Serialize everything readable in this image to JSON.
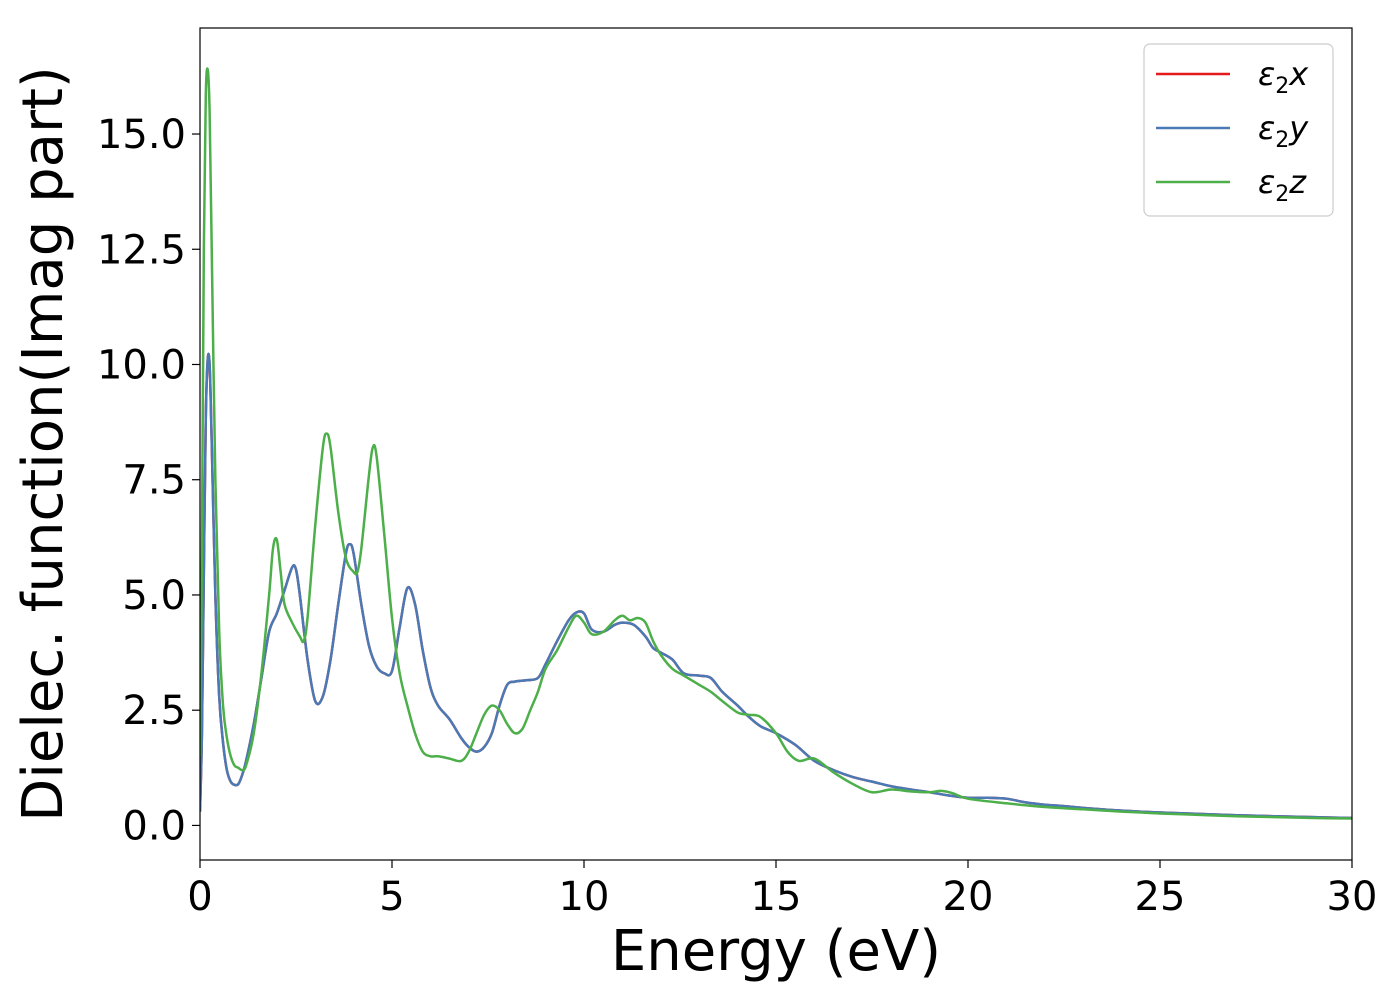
{
  "chart_data": {
    "type": "line",
    "title": "",
    "xlabel": "Energy (eV)",
    "ylabel": "Dielec. function(Imag part)",
    "xlim": [
      0,
      30
    ],
    "ylim": [
      -0.75,
      17.3
    ],
    "xticks": [
      0,
      5,
      10,
      15,
      20,
      25,
      30
    ],
    "xtick_labels": [
      "0",
      "5",
      "10",
      "15",
      "20",
      "25",
      "30"
    ],
    "yticks": [
      0,
      2.5,
      5,
      7.5,
      10,
      12.5,
      15
    ],
    "ytick_labels": [
      "0.0",
      "2.5",
      "5.0",
      "7.5",
      "10.0",
      "12.5",
      "15.0"
    ],
    "grid": false,
    "legend_position": "top-right",
    "series": [
      {
        "name": "ε2x",
        "legend_main": "ε",
        "legend_sub": "2",
        "legend_var": "x",
        "color": "#e41a1c",
        "x": [
          0,
          0.05,
          0.1,
          0.15,
          0.2,
          0.25,
          0.3,
          0.4,
          0.5,
          0.6,
          0.7,
          0.8,
          0.9,
          1.0,
          1.1,
          1.2,
          1.4,
          1.6,
          1.8,
          2.0,
          2.2,
          2.4,
          2.5,
          2.6,
          2.8,
          3.0,
          3.2,
          3.4,
          3.6,
          3.8,
          3.9,
          4.0,
          4.2,
          4.4,
          4.6,
          4.8,
          5.0,
          5.2,
          5.4,
          5.6,
          5.8,
          6.0,
          6.2,
          6.5,
          6.8,
          7.0,
          7.2,
          7.4,
          7.6,
          7.8,
          8.0,
          8.2,
          8.5,
          8.8,
          9.0,
          9.3,
          9.6,
          9.8,
          10.0,
          10.2,
          10.5,
          10.8,
          11.0,
          11.3,
          11.6,
          11.8,
          12.0,
          12.3,
          12.6,
          13.0,
          13.3,
          13.6,
          14.0,
          14.3,
          14.6,
          15.0,
          15.5,
          16.0,
          16.5,
          17.0,
          17.5,
          18.0,
          18.5,
          19.0,
          19.5,
          20.0,
          20.5,
          21.0,
          21.5,
          22.0,
          22.5,
          23.0,
          24.0,
          25.0,
          26.0,
          27.0,
          28.0,
          29.0,
          30.0
        ],
        "y": [
          0.3,
          2.0,
          5.5,
          8.8,
          10.1,
          10.0,
          8.5,
          5.0,
          2.8,
          1.8,
          1.2,
          0.95,
          0.88,
          0.9,
          1.1,
          1.4,
          2.2,
          3.2,
          4.2,
          4.6,
          5.1,
          5.6,
          5.55,
          5.0,
          3.6,
          2.7,
          2.8,
          3.6,
          4.8,
          5.9,
          6.1,
          5.9,
          4.8,
          3.9,
          3.45,
          3.3,
          3.35,
          4.3,
          5.15,
          4.8,
          3.8,
          3.0,
          2.6,
          2.3,
          1.9,
          1.7,
          1.6,
          1.7,
          2.0,
          2.6,
          3.05,
          3.12,
          3.15,
          3.2,
          3.5,
          4.0,
          4.45,
          4.62,
          4.6,
          4.25,
          4.2,
          4.35,
          4.4,
          4.35,
          4.1,
          3.85,
          3.75,
          3.6,
          3.3,
          3.25,
          3.2,
          2.9,
          2.6,
          2.35,
          2.15,
          2.0,
          1.75,
          1.4,
          1.2,
          1.05,
          0.95,
          0.85,
          0.78,
          0.72,
          0.65,
          0.6,
          0.6,
          0.58,
          0.5,
          0.45,
          0.42,
          0.38,
          0.32,
          0.28,
          0.25,
          0.22,
          0.2,
          0.18,
          0.16
        ]
      },
      {
        "name": "ε2y",
        "legend_main": "ε",
        "legend_sub": "2",
        "legend_var": "y",
        "color": "#4a7ab5",
        "x": [
          0,
          0.05,
          0.1,
          0.15,
          0.2,
          0.25,
          0.3,
          0.4,
          0.5,
          0.6,
          0.7,
          0.8,
          0.9,
          1.0,
          1.1,
          1.2,
          1.4,
          1.6,
          1.8,
          2.0,
          2.2,
          2.4,
          2.5,
          2.6,
          2.8,
          3.0,
          3.2,
          3.4,
          3.6,
          3.8,
          3.9,
          4.0,
          4.2,
          4.4,
          4.6,
          4.8,
          5.0,
          5.2,
          5.4,
          5.6,
          5.8,
          6.0,
          6.2,
          6.5,
          6.8,
          7.0,
          7.2,
          7.4,
          7.6,
          7.8,
          8.0,
          8.2,
          8.5,
          8.8,
          9.0,
          9.3,
          9.6,
          9.8,
          10.0,
          10.2,
          10.5,
          10.8,
          11.0,
          11.3,
          11.6,
          11.8,
          12.0,
          12.3,
          12.6,
          13.0,
          13.3,
          13.6,
          14.0,
          14.3,
          14.6,
          15.0,
          15.5,
          16.0,
          16.5,
          17.0,
          17.5,
          18.0,
          18.5,
          19.0,
          19.5,
          20.0,
          20.5,
          21.0,
          21.5,
          22.0,
          22.5,
          23.0,
          24.0,
          25.0,
          26.0,
          27.0,
          28.0,
          29.0,
          30.0
        ],
        "y": [
          0.3,
          2.0,
          5.5,
          8.8,
          10.1,
          10.0,
          8.5,
          5.0,
          2.8,
          1.8,
          1.2,
          0.95,
          0.88,
          0.9,
          1.1,
          1.4,
          2.2,
          3.2,
          4.2,
          4.6,
          5.1,
          5.6,
          5.55,
          5.0,
          3.6,
          2.7,
          2.8,
          3.6,
          4.8,
          5.9,
          6.1,
          5.9,
          4.8,
          3.9,
          3.45,
          3.3,
          3.35,
          4.3,
          5.15,
          4.8,
          3.8,
          3.0,
          2.6,
          2.3,
          1.9,
          1.7,
          1.6,
          1.7,
          2.0,
          2.6,
          3.05,
          3.12,
          3.15,
          3.2,
          3.5,
          4.0,
          4.45,
          4.62,
          4.6,
          4.25,
          4.2,
          4.35,
          4.4,
          4.35,
          4.1,
          3.85,
          3.75,
          3.6,
          3.3,
          3.25,
          3.2,
          2.9,
          2.6,
          2.35,
          2.15,
          2.0,
          1.75,
          1.4,
          1.2,
          1.05,
          0.95,
          0.85,
          0.78,
          0.72,
          0.65,
          0.6,
          0.6,
          0.58,
          0.5,
          0.45,
          0.42,
          0.38,
          0.32,
          0.28,
          0.25,
          0.22,
          0.2,
          0.18,
          0.16
        ]
      },
      {
        "name": "ε2z",
        "legend_main": "ε",
        "legend_sub": "2",
        "legend_var": "z",
        "color": "#4daf4a",
        "x": [
          0,
          0.05,
          0.1,
          0.15,
          0.2,
          0.25,
          0.3,
          0.4,
          0.5,
          0.6,
          0.7,
          0.8,
          0.9,
          1.0,
          1.1,
          1.2,
          1.4,
          1.6,
          1.8,
          1.9,
          2.0,
          2.1,
          2.2,
          2.4,
          2.6,
          2.7,
          2.8,
          3.0,
          3.2,
          3.3,
          3.4,
          3.6,
          3.8,
          4.0,
          4.1,
          4.2,
          4.4,
          4.5,
          4.6,
          4.8,
          5.0,
          5.2,
          5.4,
          5.6,
          5.8,
          6.0,
          6.2,
          6.5,
          6.8,
          7.0,
          7.2,
          7.4,
          7.6,
          7.8,
          8.0,
          8.2,
          8.4,
          8.6,
          8.8,
          9.0,
          9.3,
          9.6,
          9.8,
          10.0,
          10.2,
          10.5,
          10.8,
          11.0,
          11.2,
          11.4,
          11.6,
          11.8,
          12.0,
          12.3,
          12.6,
          13.0,
          13.3,
          13.6,
          14.0,
          14.3,
          14.6,
          15.0,
          15.3,
          15.6,
          16.0,
          16.5,
          17.0,
          17.5,
          18.0,
          18.5,
          19.0,
          19.3,
          19.6,
          20.0,
          21.0,
          22.0,
          23.0,
          24.0,
          25.0,
          26.0,
          27.0,
          28.0,
          29.0,
          30.0
        ],
        "y": [
          1.5,
          6.0,
          12.5,
          15.8,
          16.4,
          15.5,
          12.8,
          7.5,
          4.2,
          2.6,
          1.9,
          1.5,
          1.3,
          1.25,
          1.2,
          1.3,
          2.0,
          3.3,
          5.0,
          6.0,
          6.2,
          5.5,
          4.8,
          4.4,
          4.1,
          4.0,
          4.5,
          6.5,
          8.2,
          8.5,
          8.2,
          6.8,
          5.8,
          5.5,
          5.5,
          6.0,
          7.6,
          8.2,
          8.0,
          6.3,
          4.5,
          3.3,
          2.6,
          2.0,
          1.6,
          1.5,
          1.5,
          1.45,
          1.4,
          1.6,
          2.0,
          2.4,
          2.6,
          2.5,
          2.2,
          2.0,
          2.1,
          2.5,
          2.9,
          3.4,
          3.8,
          4.3,
          4.55,
          4.4,
          4.15,
          4.2,
          4.45,
          4.55,
          4.45,
          4.5,
          4.4,
          4.0,
          3.7,
          3.4,
          3.25,
          3.05,
          2.9,
          2.7,
          2.45,
          2.4,
          2.35,
          2.0,
          1.6,
          1.4,
          1.45,
          1.15,
          0.9,
          0.72,
          0.78,
          0.74,
          0.72,
          0.75,
          0.7,
          0.58,
          0.48,
          0.4,
          0.35,
          0.3,
          0.26,
          0.23,
          0.2,
          0.18,
          0.16,
          0.15
        ]
      }
    ]
  }
}
